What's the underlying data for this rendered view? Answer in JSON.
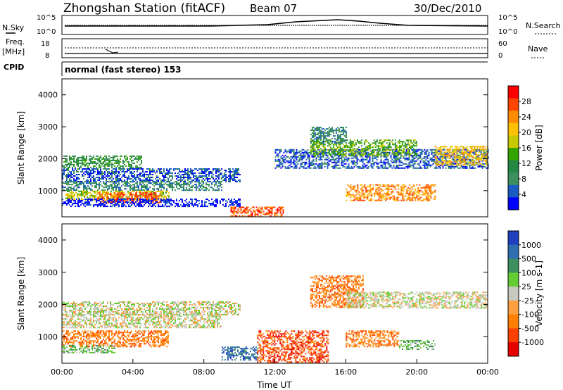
{
  "header": {
    "station": "Zhongshan Station (fitACF)",
    "beam": "Beam 07",
    "date": "30/Dec/2010"
  },
  "strip_panels": {
    "nsky_label": "N.Sky",
    "nsearch_label": "N.Search",
    "nsky_ticks": [
      "10^5",
      "10^0"
    ],
    "nsearch_ticks": [
      "10^5",
      "10^0"
    ],
    "freq_label": "Freq.",
    "freq_unit": "[MHz]",
    "freq_ticks": [
      "18",
      "8"
    ],
    "nave_label": "Nave",
    "nave_ticks": [
      "60",
      "0"
    ],
    "cpid_label": "CPID",
    "cpid_text": "normal (fast stereo) 153"
  },
  "chart_data": [
    {
      "type": "heatmap",
      "panel": "power",
      "ylabel": "Slant Range [km]",
      "y_ticks": [
        1000,
        2000,
        3000,
        4000
      ],
      "ylim": [
        180,
        4500
      ],
      "xlim": [
        0,
        24
      ],
      "colorbar": {
        "label": "Power [dB]",
        "ticks": [
          "28",
          "24",
          "20",
          "16",
          "12",
          "8",
          "4"
        ],
        "colors": [
          "#ff0000",
          "#ff4400",
          "#ff8c00",
          "#ffc000",
          "#c8c800",
          "#33a300",
          "#228844",
          "#3d8f5f",
          "#1a5cc2",
          "#0000ff"
        ]
      },
      "bands": [
        {
          "t0": 0,
          "t1": 4.5,
          "r0": 1700,
          "r1": 2100,
          "c": 6
        },
        {
          "t0": 0,
          "t1": 10,
          "r0": 1300,
          "r1": 1700,
          "c": 8
        },
        {
          "t0": 0,
          "t1": 9,
          "r0": 1000,
          "r1": 1300,
          "c": 7
        },
        {
          "t0": 0.2,
          "t1": 6,
          "r0": 700,
          "r1": 1000,
          "c": 4
        },
        {
          "t0": 2,
          "t1": 5.5,
          "r0": 600,
          "r1": 950,
          "c": 1
        },
        {
          "t0": 9.5,
          "t1": 12.5,
          "r0": 200,
          "r1": 500,
          "c": 1
        },
        {
          "t0": 12,
          "t1": 24,
          "r0": 1700,
          "r1": 2300,
          "c": 8
        },
        {
          "t0": 14,
          "t1": 20,
          "r0": 2100,
          "r1": 2600,
          "c": 5
        },
        {
          "t0": 16,
          "t1": 21,
          "r0": 700,
          "r1": 1200,
          "c": 2
        },
        {
          "t0": 21,
          "t1": 24,
          "r0": 1800,
          "r1": 2400,
          "c": 3
        },
        {
          "t0": 14,
          "t1": 16,
          "r0": 2500,
          "r1": 3000,
          "c": 7
        },
        {
          "t0": 0,
          "t1": 10,
          "r0": 500,
          "r1": 750,
          "c": 9
        }
      ]
    },
    {
      "type": "heatmap",
      "panel": "velocity",
      "ylabel": "Slant Range [km]",
      "xlabel": "Time UT",
      "x_ticks": [
        "00:00",
        "04:00",
        "08:00",
        "12:00",
        "16:00",
        "20:00",
        "00:00"
      ],
      "y_ticks": [
        1000,
        2000,
        3000,
        4000
      ],
      "ylim": [
        180,
        4500
      ],
      "xlim": [
        0,
        24
      ],
      "colorbar": {
        "label": "Velocity [m s-1]",
        "ticks": [
          "1000",
          "500",
          "100",
          "25",
          "-25",
          "-100",
          "-500",
          "-1000"
        ],
        "colors": [
          "#2040c0",
          "#2f6fb0",
          "#3d8f5f",
          "#66cc33",
          "#c8c8c0",
          "#ffa040",
          "#ff8000",
          "#ff4000",
          "#e60000"
        ]
      },
      "bands": [
        {
          "t0": 0,
          "t1": 10,
          "r0": 1700,
          "r1": 2100,
          "c": 4
        },
        {
          "t0": 0,
          "t1": 9,
          "r0": 1300,
          "r1": 1700,
          "c": 4
        },
        {
          "t0": 0,
          "t1": 6,
          "r0": 700,
          "r1": 1200,
          "c": 6
        },
        {
          "t0": 0,
          "t1": 3,
          "r0": 500,
          "r1": 750,
          "c": 3
        },
        {
          "t0": 9,
          "t1": 11,
          "r0": 300,
          "r1": 700,
          "c": 1
        },
        {
          "t0": 11,
          "t1": 15,
          "r0": 200,
          "r1": 1200,
          "c": 7
        },
        {
          "t0": 14,
          "t1": 17,
          "r0": 1900,
          "r1": 2900,
          "c": 6
        },
        {
          "t0": 16,
          "t1": 24,
          "r0": 1900,
          "r1": 2400,
          "c": 4
        },
        {
          "t0": 16,
          "t1": 19,
          "r0": 700,
          "r1": 1200,
          "c": 6
        },
        {
          "t0": 19,
          "t1": 21,
          "r0": 600,
          "r1": 900,
          "c": 3
        }
      ]
    }
  ]
}
